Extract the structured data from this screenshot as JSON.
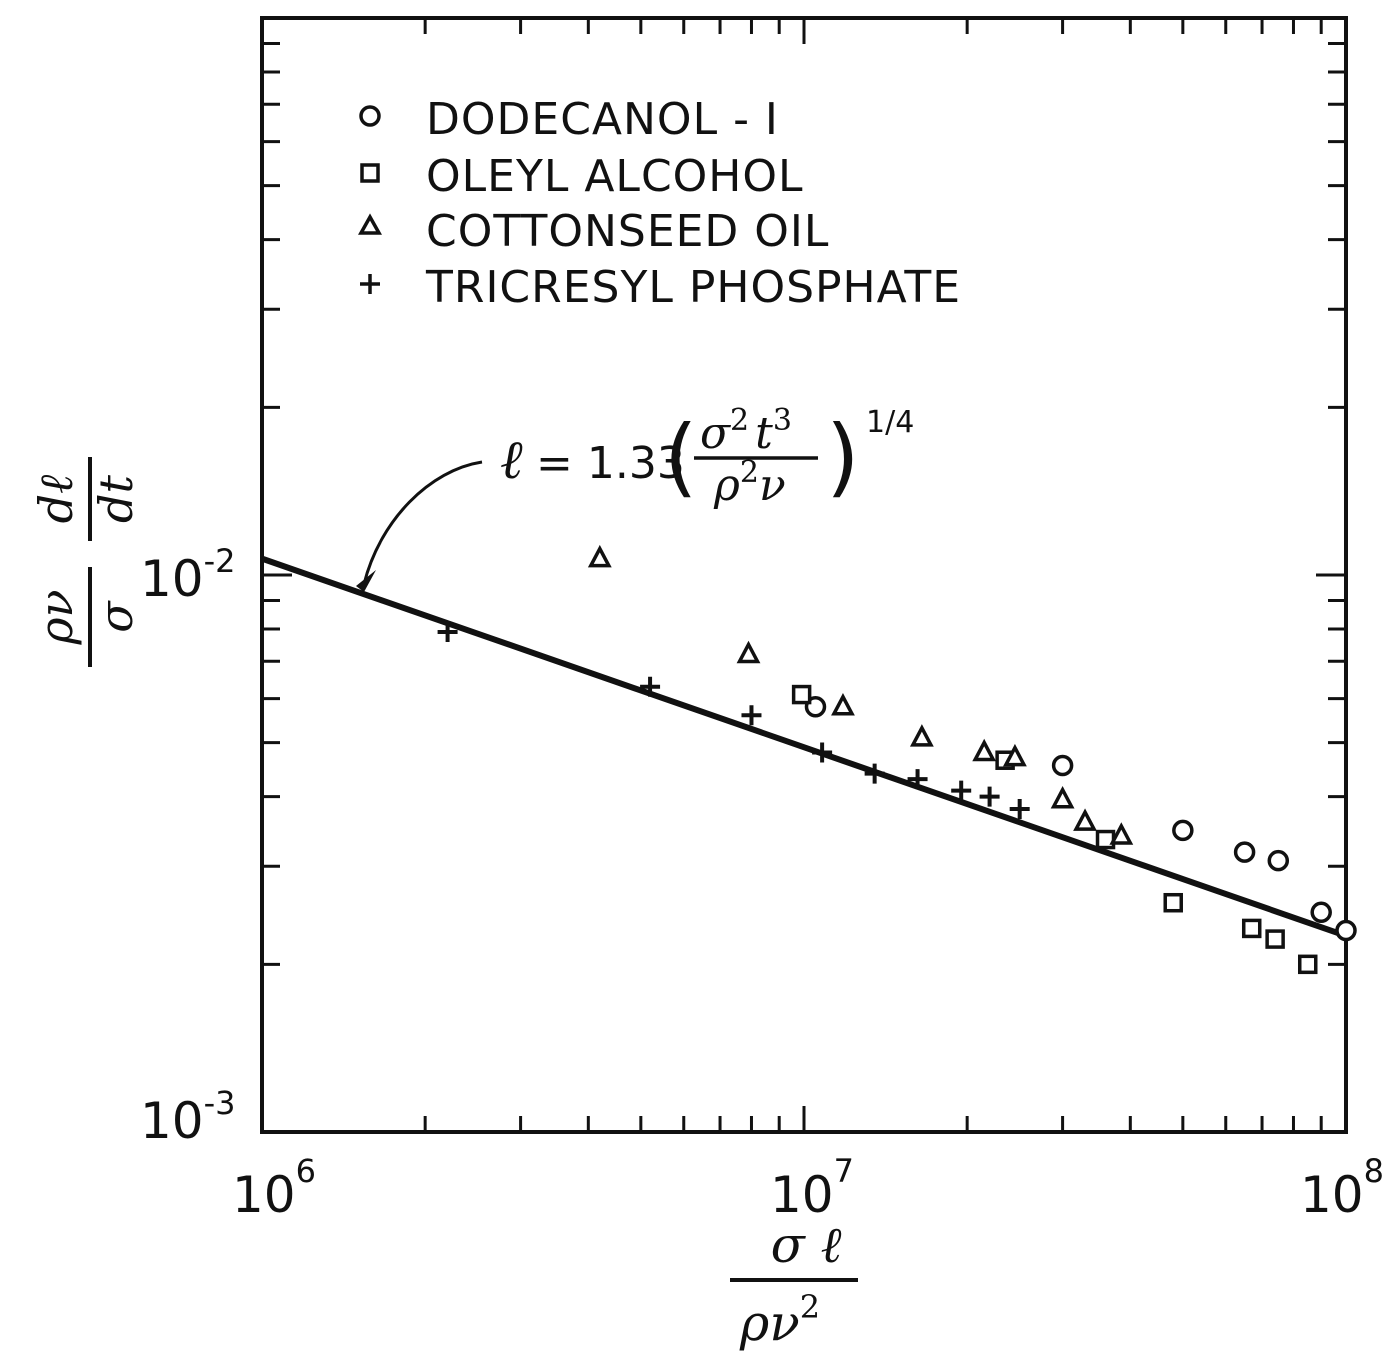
{
  "chart_data": {
    "type": "scatter",
    "xscale": "log",
    "yscale": "log",
    "xlim": [
      1000000,
      100000000
    ],
    "ylim": [
      0.001,
      0.1
    ],
    "x_tick_labels": [
      {
        "base": "10",
        "exp": "6"
      },
      {
        "base": "10",
        "exp": "7"
      },
      {
        "base": "10",
        "exp": "8"
      }
    ],
    "y_tick_labels": [
      {
        "base": "10",
        "exp": "-3"
      },
      {
        "base": "10",
        "exp": "-2"
      }
    ],
    "xlabel": {
      "numerator": "σ ℓ",
      "denominator": "ρν",
      "denominator_exp": "2"
    },
    "ylabel": {
      "fraction1_num": "ρν",
      "fraction1_den": "σ",
      "fraction2_num": "dℓ",
      "fraction2_den": "dt"
    },
    "legend": {
      "placement": "top-left",
      "entries": [
        {
          "marker": "circle",
          "label": "DODECANOL - I"
        },
        {
          "marker": "square",
          "label": "OLEYL ALCOHOL"
        },
        {
          "marker": "triangle",
          "label": "COTTONSEED OIL"
        },
        {
          "marker": "plus",
          "label": "TRICRESYL PHOSPHATE"
        }
      ]
    },
    "fit_line": {
      "x": [
        1000000,
        100000000
      ],
      "y": [
        0.0107,
        0.00225
      ]
    },
    "annotation": {
      "lhs": "ℓ",
      "eq": "= 1.33",
      "num": "σ",
      "num_exp1": "2",
      "num_t": "t",
      "num_exp2": "3",
      "den": "ρ",
      "den_exp": "2",
      "den_nu": "ν",
      "outer_exp": "1/4"
    },
    "series": [
      {
        "name": "DODECANOL - I",
        "marker": "circle",
        "x": [
          10500000,
          30000000,
          50000000,
          65000000,
          75000000,
          90000000,
          100000000
        ],
        "y": [
          0.0058,
          0.00455,
          0.00348,
          0.00318,
          0.00307,
          0.00248,
          0.0023
        ]
      },
      {
        "name": "OLEYL ALCOHOL",
        "marker": "square",
        "x": [
          9900000,
          23500000,
          36000000,
          48000000,
          67000000,
          74000000,
          85000000
        ],
        "y": [
          0.0061,
          0.00465,
          0.00335,
          0.00258,
          0.00232,
          0.00222,
          0.002
        ]
      },
      {
        "name": "COTTONSEED OIL",
        "marker": "triangle",
        "x": [
          4200000,
          7900000,
          11800000,
          16500000,
          21500000,
          24500000,
          30000000,
          33000000,
          38500000
        ],
        "y": [
          0.0107,
          0.0072,
          0.0058,
          0.0051,
          0.0048,
          0.0047,
          0.00395,
          0.0036,
          0.0034
        ]
      },
      {
        "name": "TRICRESYL PHOSPHATE",
        "marker": "plus",
        "x": [
          2200000,
          5200000,
          8000000,
          10800000,
          13500000,
          16200000,
          19500000,
          22000000,
          25000000
        ],
        "y": [
          0.0079,
          0.0063,
          0.0056,
          0.0048,
          0.0044,
          0.0043,
          0.0041,
          0.004,
          0.0038
        ]
      }
    ]
  }
}
